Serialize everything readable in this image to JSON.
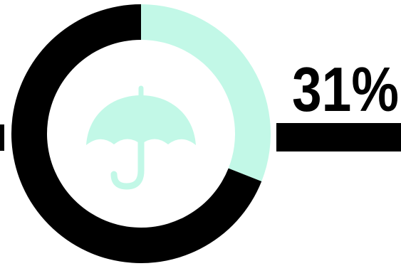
{
  "chart_data": {
    "type": "pie",
    "style": "donut",
    "value_label": "31%",
    "slices": [
      {
        "value": 31,
        "color": "#c2f8e7"
      },
      {
        "value": 69,
        "color": "#000000"
      }
    ],
    "icon": "umbrella-icon",
    "icon_color": "#c2f8e7",
    "bar_color": "#000000"
  }
}
